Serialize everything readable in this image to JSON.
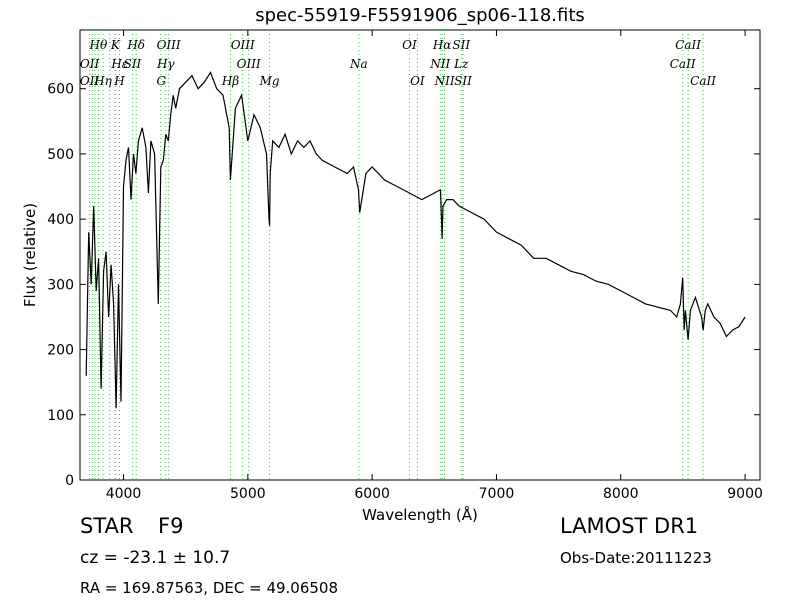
{
  "chart_data": {
    "type": "line",
    "title": "spec-55919-F5591906_sp06-118.fits",
    "xlabel": "Wavelength (Å)",
    "ylabel": "Flux (relative)",
    "xlim": [
      3650,
      9120
    ],
    "ylim": [
      0,
      690
    ],
    "xticks": [
      4000,
      5000,
      6000,
      7000,
      8000,
      9000
    ],
    "yticks": [
      0,
      100,
      200,
      300,
      400,
      500,
      600
    ],
    "grid": false,
    "series": [
      {
        "color": "#000000",
        "x": [
          3700,
          3720,
          3740,
          3760,
          3780,
          3800,
          3820,
          3840,
          3860,
          3880,
          3900,
          3920,
          3940,
          3960,
          3980,
          4000,
          4020,
          4040,
          4060,
          4080,
          4100,
          4120,
          4150,
          4180,
          4200,
          4220,
          4250,
          4280,
          4300,
          4320,
          4340,
          4360,
          4380,
          4400,
          4420,
          4450,
          4500,
          4550,
          4600,
          4650,
          4700,
          4750,
          4800,
          4850,
          4860,
          4900,
          4950,
          5000,
          5050,
          5100,
          5150,
          5170,
          5175,
          5180,
          5200,
          5250,
          5300,
          5350,
          5400,
          5450,
          5500,
          5550,
          5600,
          5700,
          5800,
          5850,
          5890,
          5900,
          5950,
          6000,
          6100,
          6200,
          6300,
          6400,
          6500,
          6550,
          6563,
          6570,
          6600,
          6650,
          6700,
          6800,
          6900,
          7000,
          7100,
          7200,
          7300,
          7400,
          7500,
          7600,
          7700,
          7800,
          7900,
          8000,
          8100,
          8200,
          8300,
          8400,
          8450,
          8480,
          8498,
          8510,
          8520,
          8542,
          8560,
          8600,
          8650,
          8662,
          8680,
          8700,
          8750,
          8800,
          8850,
          8900,
          8950,
          9000
        ],
        "y": [
          160,
          380,
          300,
          420,
          290,
          340,
          140,
          320,
          350,
          250,
          330,
          270,
          110,
          300,
          120,
          450,
          490,
          510,
          430,
          500,
          470,
          520,
          540,
          510,
          440,
          520,
          500,
          270,
          480,
          490,
          530,
          520,
          560,
          590,
          570,
          600,
          610,
          620,
          600,
          610,
          625,
          600,
          590,
          540,
          460,
          570,
          590,
          520,
          560,
          540,
          500,
          400,
          390,
          470,
          520,
          510,
          530,
          500,
          520,
          510,
          520,
          500,
          490,
          480,
          470,
          480,
          445,
          410,
          470,
          480,
          460,
          450,
          440,
          430,
          440,
          445,
          370,
          420,
          430,
          430,
          420,
          410,
          400,
          380,
          370,
          360,
          340,
          340,
          330,
          320,
          315,
          305,
          300,
          290,
          280,
          270,
          265,
          260,
          250,
          270,
          310,
          230,
          260,
          215,
          260,
          280,
          250,
          230,
          260,
          270,
          250,
          240,
          220,
          230,
          235,
          250
        ]
      }
    ],
    "line_labels_top": [
      {
        "label": "Hθ",
        "x": 3798
      },
      {
        "label": "K",
        "x": 3934
      },
      {
        "label": "Hδ",
        "x": 4102
      },
      {
        "label": "OIII",
        "x": 4363
      },
      {
        "label": "OIII",
        "x": 4959
      },
      {
        "label": "OI",
        "x": 6300
      },
      {
        "label": "Hα",
        "x": 6563
      },
      {
        "label": "SII",
        "x": 6717
      },
      {
        "label": "CaII",
        "x": 8542
      }
    ],
    "line_labels_mid": [
      {
        "label": "OII",
        "x": 3727
      },
      {
        "label": "Hε",
        "x": 3970
      },
      {
        "label": "SII",
        "x": 4072
      },
      {
        "label": "Hγ",
        "x": 4340
      },
      {
        "label": "OIII",
        "x": 5007
      },
      {
        "label": "Na",
        "x": 5893
      },
      {
        "label": "NII",
        "x": 6548
      },
      {
        "label": "Lz",
        "x": 6717
      },
      {
        "label": "CaII",
        "x": 8498
      }
    ],
    "line_labels_low": [
      {
        "label": "OII",
        "x": 3727
      },
      {
        "label": "Hη",
        "x": 3835
      },
      {
        "label": "H",
        "x": 3968
      },
      {
        "label": "G",
        "x": 4304
      },
      {
        "label": "Hβ",
        "x": 4861
      },
      {
        "label": "Mg",
        "x": 5175
      },
      {
        "label": "OI",
        "x": 6364
      },
      {
        "label": "NII",
        "x": 6583
      },
      {
        "label": "SII",
        "x": 6731
      },
      {
        "label": "CaII",
        "x": 8662
      }
    ],
    "line_markers": [
      3727,
      3750,
      3771,
      3798,
      3835,
      3889,
      3934,
      3968,
      4072,
      4102,
      4300,
      4340,
      4363,
      4861,
      4959,
      5007,
      5175,
      5893,
      6300,
      6364,
      6548,
      6563,
      6583,
      6717,
      6731,
      8498,
      8542,
      8662
    ]
  },
  "info": {
    "object_class": "STAR",
    "subclass": "F9",
    "cz": "cz = -23.1 ± 10.7",
    "coords": "RA = 169.87563, DEC = 49.06508",
    "survey": "LAMOST DR1",
    "obs_date": "Obs-Date:20111223"
  }
}
